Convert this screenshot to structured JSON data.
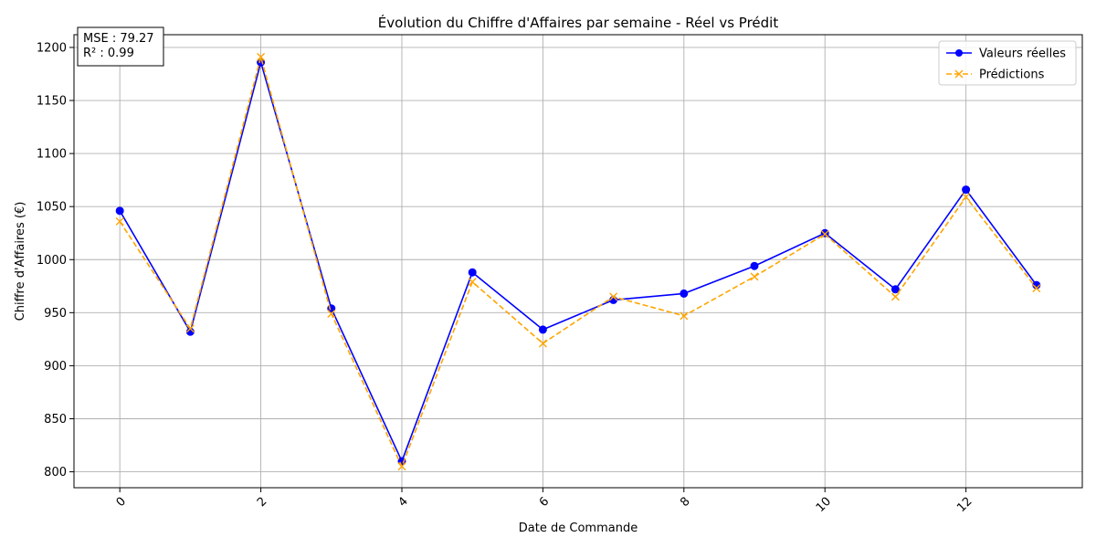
{
  "chart_data": {
    "type": "line",
    "title": "Évolution du Chiffre d'Affaires par semaine - Réel vs Prédit",
    "xlabel": "Date de Commande",
    "ylabel": "Chiffre d'Affaires (€)",
    "xlim": [
      -0.65,
      13.65
    ],
    "ylim": [
      785,
      1212
    ],
    "x_ticks": [
      0,
      2,
      4,
      6,
      8,
      10,
      12
    ],
    "y_ticks": [
      800,
      850,
      900,
      950,
      1000,
      1050,
      1100,
      1150,
      1200
    ],
    "x_tick_rotation": 45,
    "grid": true,
    "legend_position": "top-right",
    "x": [
      0,
      1,
      2,
      3,
      4,
      5,
      6,
      7,
      8,
      9,
      10,
      11,
      12,
      13
    ],
    "series": [
      {
        "name": "Valeurs réelles",
        "color": "#0000ff",
        "line_style": "solid",
        "marker": "circle",
        "values": [
          1046,
          932,
          1186,
          954,
          810,
          988,
          934,
          962,
          968,
          994,
          1025,
          972,
          1066,
          976
        ]
      },
      {
        "name": "Prédictions",
        "color": "#ffa500",
        "line_style": "dashed",
        "marker": "x",
        "values": [
          1036,
          935,
          1191,
          949,
          805,
          979,
          921,
          965,
          947,
          984,
          1024,
          965,
          1059,
          973
        ]
      }
    ],
    "annotation": {
      "lines": [
        "MSE : 79.27",
        "R² : 0.99"
      ],
      "position": "top-left"
    }
  }
}
